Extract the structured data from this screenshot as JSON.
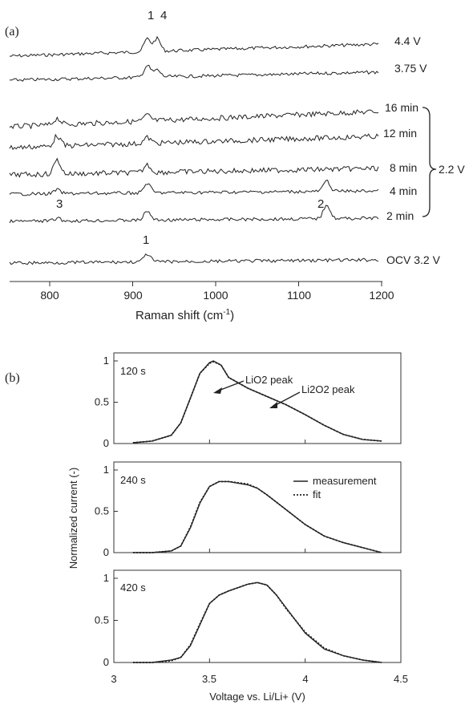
{
  "panel_a": {
    "label": "(a)",
    "peak_labels": [
      "1",
      "4",
      "3",
      "2",
      "1"
    ],
    "spectra_labels": [
      "4.4 V",
      "3.75 V",
      "16 min",
      "12 min",
      "8 min",
      "4 min",
      "2 min",
      "OCV 3.2 V"
    ],
    "group_label": "2.2 V",
    "xlabel": "Raman shift (cm",
    "xlabel_sup": "-1",
    "xlabel_end": ")",
    "xticks": [
      "800",
      "900",
      "1000",
      "1100",
      "1200"
    ]
  },
  "panel_b": {
    "label": "(b)",
    "ylabel": "Normalized current (-)",
    "xlabel": "Voltage vs. Li/Li+ (V)",
    "xticks": [
      "3",
      "3.5",
      "4",
      "4.5"
    ],
    "yticks": [
      "0",
      "0.5",
      "1"
    ],
    "subplot_titles": [
      "120 s",
      "240 s",
      "420 s"
    ],
    "annotations": {
      "lio2_peak": "LiO2 peak",
      "li2o2_peak": "Li2O2 peak"
    },
    "legend": [
      "measurement",
      "fit"
    ]
  },
  "colors": {
    "line": "#222222",
    "axis": "#333333"
  },
  "chart_data": [
    {
      "type": "line",
      "title": "",
      "xlabel": "Raman shift (cm-1)",
      "ylabel": "",
      "xlim": [
        750,
        1200
      ],
      "series": [
        {
          "name": "4.4 V",
          "peaks": [
            {
              "x": 918,
              "h": 1.0
            },
            {
              "x": 930,
              "h": 1.0
            }
          ]
        },
        {
          "name": "3.75 V",
          "peaks": [
            {
              "x": 918,
              "h": 0.9
            },
            {
              "x": 930,
              "h": 0.55
            }
          ]
        },
        {
          "name": "16 min",
          "peaks": [
            {
              "x": 808,
              "h": 0.5
            },
            {
              "x": 918,
              "h": 0.45
            }
          ]
        },
        {
          "name": "12 min",
          "peaks": [
            {
              "x": 808,
              "h": 0.8
            },
            {
              "x": 918,
              "h": 0.45
            }
          ]
        },
        {
          "name": "8 min",
          "peaks": [
            {
              "x": 808,
              "h": 1.1
            },
            {
              "x": 918,
              "h": 0.6
            }
          ]
        },
        {
          "name": "4 min",
          "peaks": [
            {
              "x": 808,
              "h": 0.3
            },
            {
              "x": 918,
              "h": 0.75
            },
            {
              "x": 1137,
              "h": 0.8
            }
          ]
        },
        {
          "name": "2 min",
          "peaks": [
            {
              "x": 808,
              "h": 0.2
            },
            {
              "x": 918,
              "h": 0.7
            },
            {
              "x": 1137,
              "h": 1.1
            }
          ]
        },
        {
          "name": "OCV 3.2 V",
          "peaks": [
            {
              "x": 918,
              "h": 0.6
            }
          ]
        }
      ]
    },
    {
      "type": "line",
      "title": "120 s",
      "xlabel": "Voltage vs. Li/Li+ (V)",
      "ylabel": "Normalized current (-)",
      "xlim": [
        3,
        4.5
      ],
      "ylim": [
        0,
        1
      ],
      "series": [
        {
          "name": "measurement",
          "x": [
            3.1,
            3.2,
            3.3,
            3.35,
            3.4,
            3.45,
            3.5,
            3.52,
            3.56,
            3.6,
            3.7,
            3.8,
            3.9,
            4.0,
            4.1,
            4.2,
            4.3,
            4.4
          ],
          "y": [
            0.01,
            0.03,
            0.1,
            0.25,
            0.55,
            0.85,
            0.98,
            1.0,
            0.95,
            0.8,
            0.67,
            0.57,
            0.47,
            0.35,
            0.22,
            0.11,
            0.05,
            0.03
          ]
        },
        {
          "name": "fit",
          "x": [
            3.1,
            3.2,
            3.3,
            3.35,
            3.4,
            3.45,
            3.5,
            3.52,
            3.56,
            3.6,
            3.7,
            3.8,
            3.9,
            4.0,
            4.1,
            4.2,
            4.3,
            4.4
          ],
          "y": [
            0.01,
            0.03,
            0.1,
            0.25,
            0.55,
            0.85,
            0.97,
            0.99,
            0.95,
            0.8,
            0.67,
            0.57,
            0.47,
            0.35,
            0.22,
            0.11,
            0.05,
            0.03
          ]
        }
      ]
    },
    {
      "type": "line",
      "title": "240 s",
      "xlabel": "Voltage vs. Li/Li+ (V)",
      "ylabel": "Normalized current (-)",
      "xlim": [
        3,
        4.5
      ],
      "ylim": [
        0,
        1
      ],
      "series": [
        {
          "name": "measurement",
          "x": [
            3.1,
            3.2,
            3.3,
            3.35,
            3.4,
            3.45,
            3.5,
            3.55,
            3.6,
            3.7,
            3.75,
            3.8,
            3.9,
            4.0,
            4.1,
            4.2,
            4.3,
            4.4
          ],
          "y": [
            0.0,
            0.0,
            0.02,
            0.08,
            0.3,
            0.6,
            0.8,
            0.86,
            0.86,
            0.82,
            0.78,
            0.7,
            0.52,
            0.34,
            0.2,
            0.12,
            0.06,
            0.0
          ]
        },
        {
          "name": "fit",
          "x": [
            3.1,
            3.2,
            3.3,
            3.35,
            3.4,
            3.45,
            3.5,
            3.55,
            3.6,
            3.7,
            3.75,
            3.8,
            3.9,
            4.0,
            4.1,
            4.2,
            4.3,
            4.4
          ],
          "y": [
            0.0,
            0.0,
            0.02,
            0.08,
            0.31,
            0.61,
            0.8,
            0.86,
            0.86,
            0.83,
            0.78,
            0.7,
            0.52,
            0.34,
            0.2,
            0.12,
            0.06,
            0.0
          ]
        }
      ]
    },
    {
      "type": "line",
      "title": "420 s",
      "xlabel": "Voltage vs. Li/Li+ (V)",
      "ylabel": "Normalized current (-)",
      "xlim": [
        3,
        4.5
      ],
      "ylim": [
        0,
        1
      ],
      "series": [
        {
          "name": "measurement",
          "x": [
            3.1,
            3.2,
            3.3,
            3.35,
            3.4,
            3.45,
            3.5,
            3.55,
            3.6,
            3.7,
            3.75,
            3.8,
            3.85,
            3.9,
            4.0,
            4.1,
            4.2,
            4.3,
            4.4
          ],
          "y": [
            0.0,
            0.0,
            0.03,
            0.06,
            0.2,
            0.45,
            0.7,
            0.8,
            0.85,
            0.93,
            0.95,
            0.92,
            0.8,
            0.65,
            0.35,
            0.16,
            0.08,
            0.03,
            0.0
          ]
        },
        {
          "name": "fit",
          "x": [
            3.1,
            3.2,
            3.3,
            3.35,
            3.4,
            3.45,
            3.5,
            3.55,
            3.6,
            3.7,
            3.75,
            3.8,
            3.85,
            3.9,
            4.0,
            4.1,
            4.2,
            4.3,
            4.4
          ],
          "y": [
            0.0,
            0.0,
            0.02,
            0.06,
            0.21,
            0.46,
            0.7,
            0.8,
            0.85,
            0.93,
            0.95,
            0.92,
            0.8,
            0.64,
            0.36,
            0.17,
            0.08,
            0.03,
            0.0
          ]
        }
      ]
    }
  ]
}
